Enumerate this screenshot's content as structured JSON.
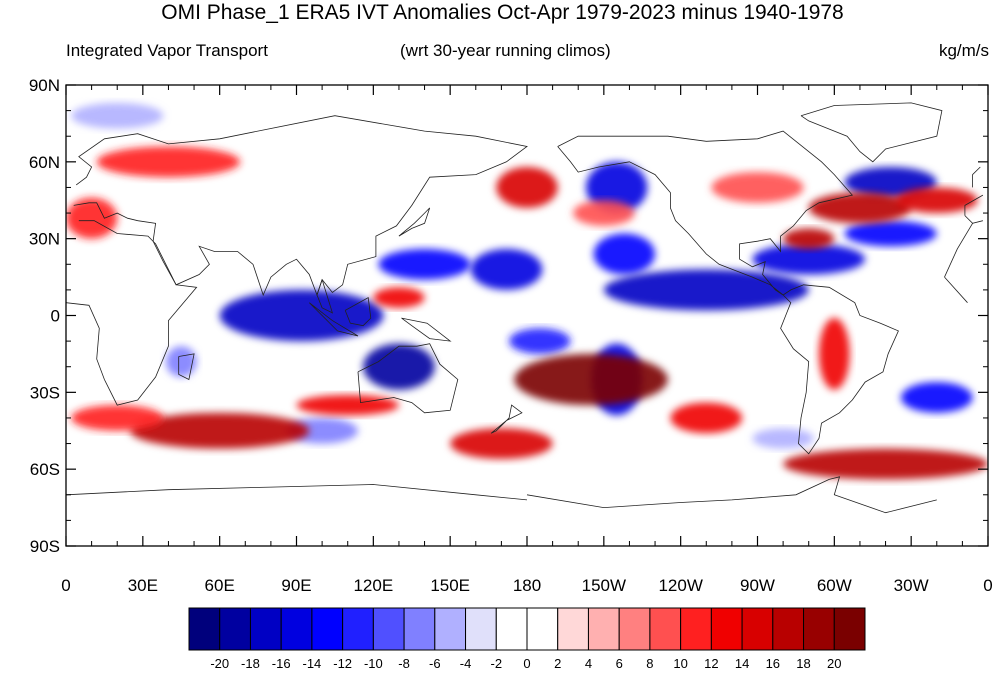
{
  "title": "OMI Phase_1 ERA5 IVT Anomalies Oct-Apr 1979-2023 minus 1940-1978",
  "left_subtitle": "Integrated Vapor Transport",
  "center_subtitle": "(wrt 30-year running climos)",
  "right_subtitle": "kg/m/s",
  "map": {
    "projection": "cylindrical-equidistant",
    "lon_range": [
      0,
      360
    ],
    "lat_range": [
      -90,
      90
    ],
    "lat_ticks": [
      {
        "value": 90,
        "label": "90N"
      },
      {
        "value": 60,
        "label": "60N"
      },
      {
        "value": 30,
        "label": "30N"
      },
      {
        "value": 0,
        "label": "0"
      },
      {
        "value": -30,
        "label": "30S"
      },
      {
        "value": -60,
        "label": "60S"
      },
      {
        "value": -90,
        "label": "90S"
      }
    ],
    "lon_ticks": [
      {
        "value": 0,
        "label": "0"
      },
      {
        "value": 30,
        "label": "30E"
      },
      {
        "value": 60,
        "label": "60E"
      },
      {
        "value": 90,
        "label": "90E"
      },
      {
        "value": 120,
        "label": "120E"
      },
      {
        "value": 150,
        "label": "150E"
      },
      {
        "value": 180,
        "label": "180"
      },
      {
        "value": 210,
        "label": "150W"
      },
      {
        "value": 240,
        "label": "120W"
      },
      {
        "value": 270,
        "label": "90W"
      },
      {
        "value": 300,
        "label": "60W"
      },
      {
        "value": 330,
        "label": "30W"
      },
      {
        "value": 360,
        "label": "0"
      }
    ],
    "anomaly_features": [
      {
        "lon": 92,
        "lat": 0,
        "rlon": 32,
        "rlat": 10,
        "value": -18
      },
      {
        "lon": 130,
        "lat": -20,
        "rlon": 14,
        "rlat": 9,
        "value": -20
      },
      {
        "lon": 140,
        "lat": 20,
        "rlon": 18,
        "rlat": 6,
        "value": -14
      },
      {
        "lon": 172,
        "lat": 18,
        "rlon": 14,
        "rlat": 8,
        "value": -16
      },
      {
        "lon": 215,
        "lat": 50,
        "rlon": 12,
        "rlat": 10,
        "value": -16
      },
      {
        "lon": 218,
        "lat": 24,
        "rlon": 12,
        "rlat": 8,
        "value": -14
      },
      {
        "lon": 250,
        "lat": 10,
        "rlon": 40,
        "rlat": 8,
        "value": -18
      },
      {
        "lon": 290,
        "lat": 22,
        "rlon": 22,
        "rlat": 6,
        "value": -16
      },
      {
        "lon": 322,
        "lat": 52,
        "rlon": 18,
        "rlat": 6,
        "value": -18
      },
      {
        "lon": 322,
        "lat": 32,
        "rlon": 18,
        "rlat": 5,
        "value": -14
      },
      {
        "lon": 340,
        "lat": -32,
        "rlon": 14,
        "rlat": 6,
        "value": -14
      },
      {
        "lon": 215,
        "lat": -25,
        "rlon": 10,
        "rlat": 14,
        "value": -16
      },
      {
        "lon": 185,
        "lat": -10,
        "rlon": 12,
        "rlat": 5,
        "value": -12
      },
      {
        "lon": 20,
        "lat": 78,
        "rlon": 18,
        "rlat": 5,
        "value": -6
      },
      {
        "lon": 100,
        "lat": -45,
        "rlon": 14,
        "rlat": 5,
        "value": -8
      },
      {
        "lon": 280,
        "lat": -48,
        "rlon": 12,
        "rlat": 4,
        "value": -6
      },
      {
        "lon": 45,
        "lat": -18,
        "rlon": 6,
        "rlat": 6,
        "value": -8
      },
      {
        "lon": 205,
        "lat": -25,
        "rlon": 30,
        "rlat": 10,
        "value": 20
      },
      {
        "lon": 180,
        "lat": 50,
        "rlon": 12,
        "rlat": 8,
        "value": 14
      },
      {
        "lon": 310,
        "lat": 42,
        "rlon": 20,
        "rlat": 6,
        "value": 16
      },
      {
        "lon": 290,
        "lat": 30,
        "rlon": 10,
        "rlat": 4,
        "value": 16
      },
      {
        "lon": 340,
        "lat": 45,
        "rlon": 16,
        "rlat": 5,
        "value": 14
      },
      {
        "lon": 60,
        "lat": -45,
        "rlon": 35,
        "rlat": 7,
        "value": 16
      },
      {
        "lon": 170,
        "lat": -50,
        "rlon": 20,
        "rlat": 6,
        "value": 14
      },
      {
        "lon": 320,
        "lat": -58,
        "rlon": 40,
        "rlat": 6,
        "value": 16
      },
      {
        "lon": 40,
        "lat": 60,
        "rlon": 28,
        "rlat": 6,
        "value": 10
      },
      {
        "lon": 10,
        "lat": 38,
        "rlon": 10,
        "rlat": 8,
        "value": 10
      },
      {
        "lon": 110,
        "lat": -35,
        "rlon": 20,
        "rlat": 4,
        "value": 12
      },
      {
        "lon": 130,
        "lat": 7,
        "rlon": 10,
        "rlat": 4,
        "value": 12
      },
      {
        "lon": 270,
        "lat": 50,
        "rlon": 18,
        "rlat": 6,
        "value": 8
      },
      {
        "lon": 250,
        "lat": -40,
        "rlon": 14,
        "rlat": 6,
        "value": 12
      },
      {
        "lon": 300,
        "lat": -15,
        "rlon": 6,
        "rlat": 14,
        "value": 12
      },
      {
        "lon": 210,
        "lat": 40,
        "rlon": 12,
        "rlat": 5,
        "value": 8
      },
      {
        "lon": 20,
        "lat": -40,
        "rlon": 18,
        "rlat": 5,
        "value": 10
      }
    ],
    "coastlines": [
      [
        [
          -17,
          15
        ],
        [
          -12,
          26
        ],
        [
          -6,
          36
        ],
        [
          5,
          37
        ],
        [
          11,
          37
        ],
        [
          20,
          32
        ],
        [
          32,
          31
        ],
        [
          35,
          28
        ],
        [
          43,
          12
        ],
        [
          51,
          11
        ],
        [
          40,
          -2
        ],
        [
          40,
          -12
        ],
        [
          35,
          -24
        ],
        [
          28,
          -33
        ],
        [
          20,
          -35
        ],
        [
          15,
          -25
        ],
        [
          12,
          -17
        ],
        [
          13,
          -5
        ],
        [
          9,
          4
        ],
        [
          0,
          5
        ],
        [
          -8,
          5
        ],
        [
          -17,
          15
        ]
      ],
      [
        [
          44,
          -16
        ],
        [
          50,
          -15
        ],
        [
          48,
          -25
        ],
        [
          44,
          -23
        ],
        [
          44,
          -16
        ]
      ],
      [
        [
          -9,
          39
        ],
        [
          -9,
          43
        ],
        [
          -2,
          47
        ],
        [
          4,
          51
        ],
        [
          8,
          54
        ],
        [
          10,
          58
        ],
        [
          5,
          62
        ],
        [
          15,
          69
        ],
        [
          28,
          71
        ],
        [
          40,
          67
        ],
        [
          60,
          69
        ],
        [
          80,
          73
        ],
        [
          105,
          78
        ],
        [
          140,
          72
        ],
        [
          160,
          70
        ],
        [
          180,
          66
        ],
        [
          172,
          60
        ],
        [
          160,
          55
        ],
        [
          142,
          54
        ],
        [
          135,
          43
        ],
        [
          129,
          35
        ],
        [
          121,
          31
        ],
        [
          121,
          23
        ],
        [
          110,
          20
        ],
        [
          108,
          12
        ],
        [
          104,
          9
        ],
        [
          100,
          14
        ],
        [
          98,
          8
        ],
        [
          95,
          16
        ],
        [
          90,
          22
        ],
        [
          86,
          20
        ],
        [
          80,
          15
        ],
        [
          77,
          8
        ],
        [
          73,
          20
        ],
        [
          67,
          25
        ],
        [
          58,
          25
        ],
        [
          52,
          27
        ],
        [
          56,
          20
        ],
        [
          52,
          16
        ],
        [
          43,
          12
        ],
        [
          38,
          21
        ],
        [
          34,
          29
        ],
        [
          35,
          36
        ],
        [
          28,
          37
        ],
        [
          24,
          38
        ],
        [
          20,
          40
        ],
        [
          15,
          38
        ],
        [
          12,
          44
        ],
        [
          9,
          44
        ],
        [
          3,
          43
        ],
        [
          -2,
          37
        ],
        [
          -6,
          36
        ],
        [
          -9,
          39
        ]
      ],
      [
        [
          100,
          14
        ],
        [
          104,
          1
        ],
        [
          100,
          3
        ],
        [
          98,
          8
        ],
        [
          100,
          14
        ]
      ],
      [
        [
          95,
          5
        ],
        [
          106,
          -6
        ],
        [
          114,
          -8
        ],
        [
          104,
          -2
        ],
        [
          95,
          5
        ]
      ],
      [
        [
          109,
          2
        ],
        [
          118,
          7
        ],
        [
          119,
          -1
        ],
        [
          116,
          -4
        ],
        [
          111,
          -3
        ],
        [
          109,
          2
        ]
      ],
      [
        [
          131,
          -1
        ],
        [
          141,
          -3
        ],
        [
          150,
          -10
        ],
        [
          142,
          -9
        ],
        [
          135,
          -4
        ],
        [
          131,
          -1
        ]
      ],
      [
        [
          114,
          -22
        ],
        [
          122,
          -18
        ],
        [
          130,
          -12
        ],
        [
          137,
          -12
        ],
        [
          142,
          -11
        ],
        [
          146,
          -19
        ],
        [
          153,
          -25
        ],
        [
          150,
          -37
        ],
        [
          140,
          -38
        ],
        [
          135,
          -34
        ],
        [
          128,
          -32
        ],
        [
          115,
          -34
        ],
        [
          114,
          -22
        ]
      ],
      [
        [
          166,
          -46
        ],
        [
          172,
          -41
        ],
        [
          178,
          -38
        ],
        [
          174,
          -35
        ],
        [
          173,
          -40
        ],
        [
          168,
          -45
        ],
        [
          166,
          -46
        ]
      ],
      [
        [
          130,
          31
        ],
        [
          135,
          34
        ],
        [
          140,
          36
        ],
        [
          142,
          42
        ],
        [
          140,
          40
        ],
        [
          136,
          36
        ],
        [
          130,
          31
        ]
      ],
      [
        [
          -168,
          66
        ],
        [
          -160,
          70
        ],
        [
          -141,
          70
        ],
        [
          -125,
          70
        ],
        [
          -110,
          68
        ],
        [
          -90,
          69
        ],
        [
          -80,
          72
        ],
        [
          -65,
          60
        ],
        [
          -60,
          55
        ],
        [
          -53,
          47
        ],
        [
          -66,
          44
        ],
        [
          -71,
          41
        ],
        [
          -76,
          35
        ],
        [
          -81,
          31
        ],
        [
          -81,
          25
        ],
        [
          -85,
          30
        ],
        [
          -90,
          29
        ],
        [
          -97,
          28
        ],
        [
          -97,
          22
        ],
        [
          -92,
          19
        ],
        [
          -87,
          21
        ],
        [
          -88,
          16
        ],
        [
          -83,
          10
        ],
        [
          -80,
          8
        ],
        [
          -85,
          12
        ],
        [
          -92,
          15
        ],
        [
          -105,
          20
        ],
        [
          -110,
          24
        ],
        [
          -117,
          32
        ],
        [
          -122,
          37
        ],
        [
          -124,
          42
        ],
        [
          -124,
          48
        ],
        [
          -130,
          55
        ],
        [
          -140,
          60
        ],
        [
          -152,
          58
        ],
        [
          -160,
          56
        ],
        [
          -163,
          60
        ],
        [
          -168,
          66
        ]
      ],
      [
        [
          -80,
          8
        ],
        [
          -77,
          10
        ],
        [
          -72,
          12
        ],
        [
          -62,
          11
        ],
        [
          -52,
          5
        ],
        [
          -50,
          0
        ],
        [
          -42,
          -3
        ],
        [
          -35,
          -6
        ],
        [
          -39,
          -15
        ],
        [
          -41,
          -22
        ],
        [
          -48,
          -26
        ],
        [
          -53,
          -33
        ],
        [
          -58,
          -38
        ],
        [
          -65,
          -42
        ],
        [
          -66,
          -48
        ],
        [
          -70,
          -54
        ],
        [
          -74,
          -50
        ],
        [
          -73,
          -40
        ],
        [
          -71,
          -30
        ],
        [
          -70,
          -18
        ],
        [
          -76,
          -13
        ],
        [
          -81,
          -5
        ],
        [
          -79,
          0
        ],
        [
          -77,
          5
        ],
        [
          -80,
          8
        ]
      ],
      [
        [
          -73,
          78
        ],
        [
          -60,
          82
        ],
        [
          -30,
          83
        ],
        [
          -18,
          80
        ],
        [
          -20,
          70
        ],
        [
          -40,
          65
        ],
        [
          -45,
          60
        ],
        [
          -50,
          64
        ],
        [
          -55,
          70
        ],
        [
          -70,
          76
        ],
        [
          -73,
          78
        ]
      ],
      [
        [
          -180,
          -70
        ],
        [
          -150,
          -75
        ],
        [
          -120,
          -73
        ],
        [
          -100,
          -72
        ],
        [
          -75,
          -70
        ],
        [
          -62,
          -64
        ],
        [
          -58,
          -63
        ],
        [
          -60,
          -70
        ],
        [
          -40,
          -77
        ],
        [
          -20,
          -72
        ],
        [
          0,
          -70
        ],
        [
          40,
          -68
        ],
        [
          80,
          -67
        ],
        [
          120,
          -66
        ],
        [
          160,
          -70
        ],
        [
          180,
          -72
        ]
      ],
      [
        [
          -6,
          50
        ],
        [
          2,
          51
        ],
        [
          -3,
          58
        ],
        [
          -6,
          55
        ],
        [
          -6,
          50
        ]
      ]
    ]
  },
  "colorbar": {
    "labels": [
      "-20",
      "-18",
      "-16",
      "-14",
      "-12",
      "-10",
      "-8",
      "-6",
      "-4",
      "-2",
      "0",
      "2",
      "4",
      "6",
      "8",
      "10",
      "12",
      "14",
      "16",
      "18",
      "20"
    ],
    "colors": [
      "#00007c",
      "#0000a0",
      "#0000c4",
      "#0000e0",
      "#0000ff",
      "#2020ff",
      "#5050ff",
      "#8080ff",
      "#b0b0ff",
      "#e0e0fa",
      "#ffffff",
      "#ffffff",
      "#ffd8d8",
      "#ffb0b0",
      "#ff8080",
      "#ff5050",
      "#ff2020",
      "#f00000",
      "#d80000",
      "#b80000",
      "#980000",
      "#7a0000"
    ]
  }
}
